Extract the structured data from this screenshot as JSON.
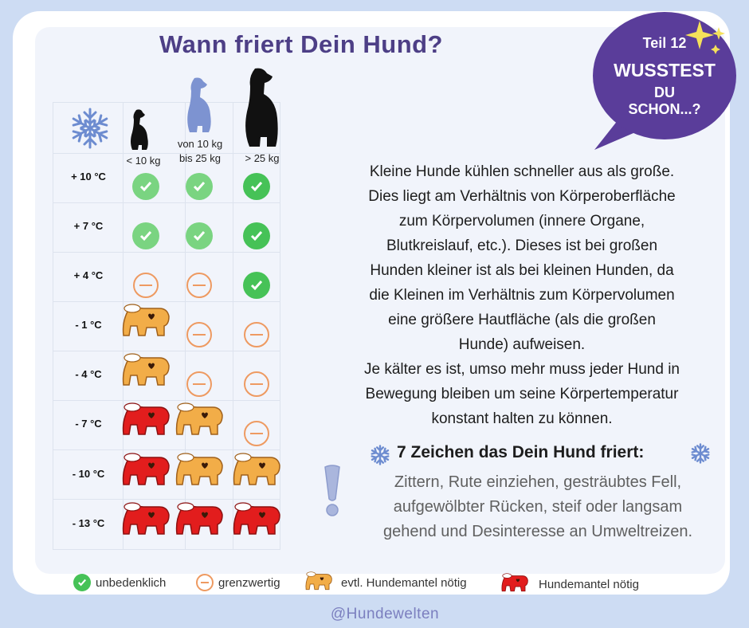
{
  "title": "Wann friert Dein Hund?",
  "badge": {
    "part": "Teil 12",
    "line1": "WUSSTEST",
    "line2": "DU",
    "line3": "SCHON...?"
  },
  "sizes": [
    {
      "label": "< 10 kg"
    },
    {
      "label_line1": "von 10 kg",
      "label_line2": "bis 25 kg"
    },
    {
      "label": ">  25 kg"
    }
  ],
  "rows": [
    {
      "temp": "+ 10 °C",
      "cells": [
        "ok",
        "ok",
        "ok"
      ]
    },
    {
      "temp": "+ 7 °C",
      "cells": [
        "ok",
        "ok",
        "ok"
      ]
    },
    {
      "temp": "+ 4 °C",
      "cells": [
        "borderline",
        "borderline",
        "ok"
      ]
    },
    {
      "temp": "- 1 °C",
      "cells": [
        "coat_maybe",
        "borderline",
        "borderline"
      ]
    },
    {
      "temp": "- 4 °C",
      "cells": [
        "coat_maybe",
        "borderline",
        "borderline"
      ]
    },
    {
      "temp": "- 7 °C",
      "cells": [
        "coat_needed",
        "coat_maybe",
        "borderline"
      ]
    },
    {
      "temp": "- 10 °C",
      "cells": [
        "coat_needed",
        "coat_maybe",
        "coat_maybe"
      ]
    },
    {
      "temp": "- 13 °C",
      "cells": [
        "coat_needed",
        "coat_needed",
        "coat_needed"
      ]
    }
  ],
  "body_lines": [
    "Kleine Hunde kühlen schneller aus als große.",
    "Dies liegt am Verhältnis von Körperoberfläche",
    "zum Körpervolumen (innere Organe,",
    "Blutkreislauf, etc.). Dieses ist bei großen",
    "Hunden kleiner ist als bei kleinen Hunden, da",
    "die Kleinen im Verhältnis zum Körpervolumen",
    "eine größere Hautfläche (als die großen",
    "Hunde) aufweisen.",
    "Je kälter es ist, umso mehr muss jeder Hund in",
    "Bewegung bleiben um seine Körpertemperatur",
    "konstant halten zu können."
  ],
  "signs_heading": "7 Zeichen das Dein Hund friert:",
  "signs_lines": [
    "Zittern, Rute einziehen, gesträubtes Fell,",
    "aufgewölbter Rücken, steif oder langsam",
    "gehend und Desinteresse an Umweltreizen."
  ],
  "legend": {
    "ok": "unbedenklich",
    "borderline": "grenzwertig",
    "coat_maybe": "evtl. Hundemantel nötig",
    "coat_needed": "Hundemantel nötig"
  },
  "footer": "@Hundewelten",
  "colors": {
    "title": "#4d3f86",
    "ok": "#7ad481",
    "borderline": "#ee9a61",
    "coat_maybe": "#f2ad48",
    "coat_needed": "#e21d1d",
    "badge": "#5a3d9a",
    "medium_dog": "#7d93d1"
  }
}
